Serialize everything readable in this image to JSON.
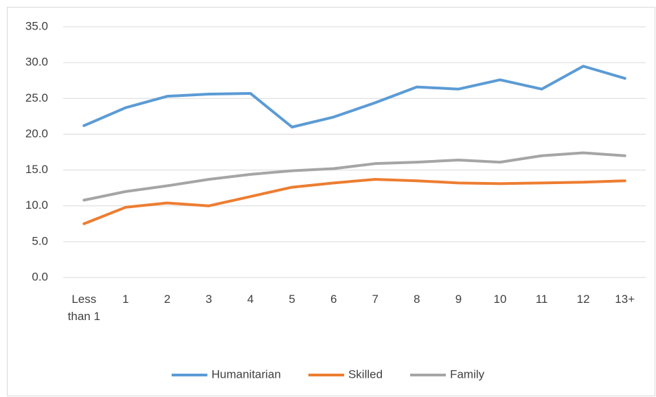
{
  "chart_data": {
    "type": "line",
    "categories": [
      "Less than 1",
      "1",
      "2",
      "3",
      "4",
      "5",
      "6",
      "7",
      "8",
      "9",
      "10",
      "11",
      "12",
      "13+"
    ],
    "series": [
      {
        "name": "Humanitarian",
        "color": "#5b9bd5",
        "values": [
          21.2,
          23.7,
          25.3,
          25.6,
          25.7,
          21.0,
          22.4,
          24.4,
          26.6,
          26.3,
          27.6,
          26.3,
          29.5,
          27.8
        ]
      },
      {
        "name": "Skilled",
        "color": "#ed7d31",
        "values": [
          7.5,
          9.8,
          10.4,
          10.0,
          11.3,
          12.6,
          13.2,
          13.7,
          13.5,
          13.2,
          13.1,
          13.2,
          13.3,
          13.5
        ]
      },
      {
        "name": "Family",
        "color": "#a5a5a5",
        "values": [
          10.8,
          12.0,
          12.8,
          13.7,
          14.4,
          14.9,
          15.2,
          15.9,
          16.1,
          16.4,
          16.1,
          17.0,
          17.4,
          17.0
        ]
      }
    ],
    "ylim": [
      0,
      35
    ],
    "yticks": [
      {
        "value": 0,
        "label": "0.0"
      },
      {
        "value": 5,
        "label": "5.0"
      },
      {
        "value": 10,
        "label": "10.0"
      },
      {
        "value": 15,
        "label": "15.0"
      },
      {
        "value": 20,
        "label": "20.0"
      },
      {
        "value": 25,
        "label": "25.0"
      },
      {
        "value": 30,
        "label": "30.0"
      },
      {
        "value": 35,
        "label": "35.0"
      }
    ],
    "grid": true,
    "legend": "bottom"
  }
}
